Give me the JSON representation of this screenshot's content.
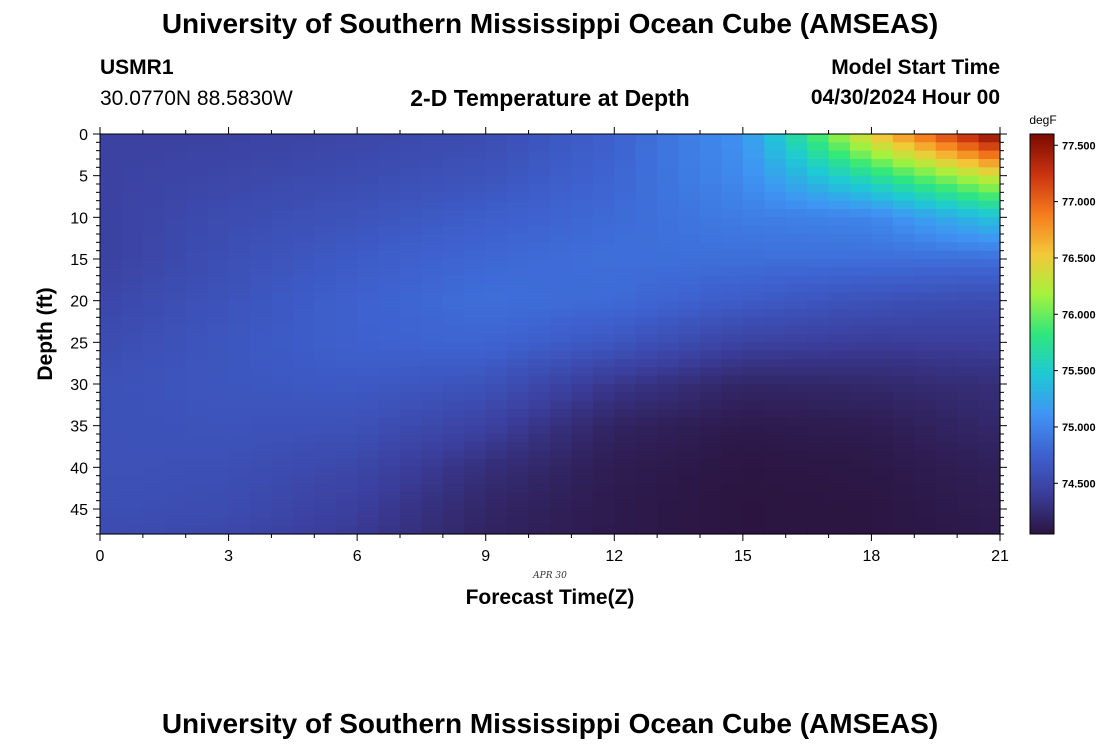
{
  "header": {
    "title": "University of Southern Mississippi Ocean Cube (AMSEAS)",
    "station": "USMR1",
    "coords": "30.0770N  88.5830W",
    "plot_title": "2-D Temperature at Depth",
    "model_start_label": "Model Start Time",
    "model_start_value": "04/30/2024 Hour 00"
  },
  "footer": {
    "title": "University of Southern Mississippi Ocean Cube (AMSEAS)"
  },
  "chart_data": {
    "type": "heatmap",
    "title": "2-D Temperature at Depth",
    "xlabel": "Forecast Time(Z)",
    "ylabel": "Depth (ft)",
    "date_label": "APR 30",
    "xlim": [
      0,
      21
    ],
    "ylim": [
      48,
      0
    ],
    "x_ticks": [
      0,
      3,
      6,
      9,
      12,
      15,
      18,
      21
    ],
    "y_ticks": [
      0,
      5,
      10,
      15,
      20,
      25,
      30,
      35,
      40,
      45
    ],
    "colorbar": {
      "unit": "degF",
      "range": [
        74.05,
        77.6
      ],
      "ticks": [
        "74.500",
        "75.000",
        "75.500",
        "76.000",
        "76.500",
        "77.000",
        "77.500"
      ],
      "colors": [
        "#2b1540",
        "#3b3d9a",
        "#3e62d0",
        "#3f95f4",
        "#1ec9d5",
        "#2fe77d",
        "#a6f23c",
        "#f4c838",
        "#f57b1c",
        "#c93210",
        "#7a0a02"
      ]
    },
    "depths_ft": [
      0,
      5,
      10,
      15,
      20,
      25,
      30,
      35,
      40,
      45,
      48
    ],
    "hours": [
      0,
      3,
      6,
      9,
      12,
      15,
      18,
      21
    ],
    "temperature_degF": [
      [
        74.45,
        74.45,
        74.5,
        74.55,
        74.75,
        75.1,
        76.5,
        77.6
      ],
      [
        74.45,
        74.5,
        74.55,
        74.62,
        74.78,
        75.05,
        75.7,
        76.4
      ],
      [
        74.45,
        74.55,
        74.62,
        74.72,
        74.82,
        74.95,
        75.0,
        75.45
      ],
      [
        74.45,
        74.58,
        74.7,
        74.8,
        74.85,
        74.85,
        74.85,
        74.85
      ],
      [
        74.5,
        74.62,
        74.75,
        74.85,
        74.82,
        74.7,
        74.6,
        74.55
      ],
      [
        74.55,
        74.65,
        74.75,
        74.78,
        74.65,
        74.45,
        74.4,
        74.42
      ],
      [
        74.6,
        74.65,
        74.68,
        74.62,
        74.35,
        74.2,
        74.22,
        74.28
      ],
      [
        74.6,
        74.62,
        74.6,
        74.45,
        74.18,
        74.1,
        74.12,
        74.22
      ],
      [
        74.6,
        74.58,
        74.5,
        74.28,
        74.12,
        74.06,
        74.08,
        74.15
      ],
      [
        74.58,
        74.55,
        74.42,
        74.2,
        74.1,
        74.05,
        74.06,
        74.12
      ],
      [
        74.55,
        74.5,
        74.38,
        74.18,
        74.1,
        74.05,
        74.06,
        74.1
      ]
    ]
  }
}
